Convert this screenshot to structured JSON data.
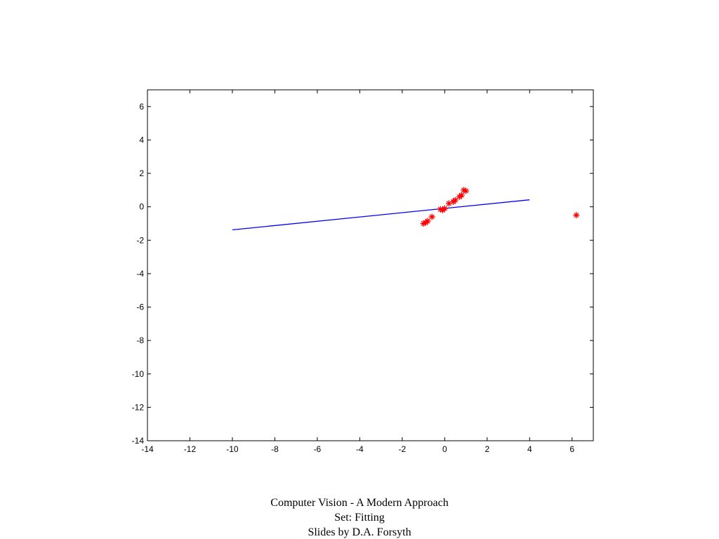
{
  "chart_data": {
    "type": "scatter",
    "xlim": [
      -14,
      7
    ],
    "ylim": [
      -14,
      7
    ],
    "xticks": [
      -14,
      -12,
      -10,
      -8,
      -6,
      -4,
      -2,
      0,
      2,
      4,
      6
    ],
    "yticks": [
      -14,
      -12,
      -10,
      -8,
      -6,
      -4,
      -2,
      0,
      2,
      4,
      6
    ],
    "grid": false,
    "series": [
      {
        "type": "line",
        "color": "#0000ff",
        "x": [
          -10,
          4
        ],
        "values": [
          -1.38,
          0.42
        ]
      },
      {
        "type": "scatter",
        "color": "#ff0000",
        "x": [
          -1.0,
          -0.9,
          -0.8,
          -0.6,
          -0.2,
          -0.1,
          0.0,
          0.2,
          0.4,
          0.5,
          0.7,
          0.8,
          0.9,
          1.0,
          6.2
        ],
        "values": [
          -1.0,
          -0.95,
          -0.85,
          -0.6,
          -0.15,
          -0.2,
          -0.1,
          0.2,
          0.3,
          0.4,
          0.6,
          0.7,
          1.0,
          0.95,
          -0.5
        ]
      }
    ]
  },
  "footer": [
    "Computer Vision - A Modern Approach",
    "Set:  Fitting",
    "Slides by D.A. Forsyth"
  ]
}
